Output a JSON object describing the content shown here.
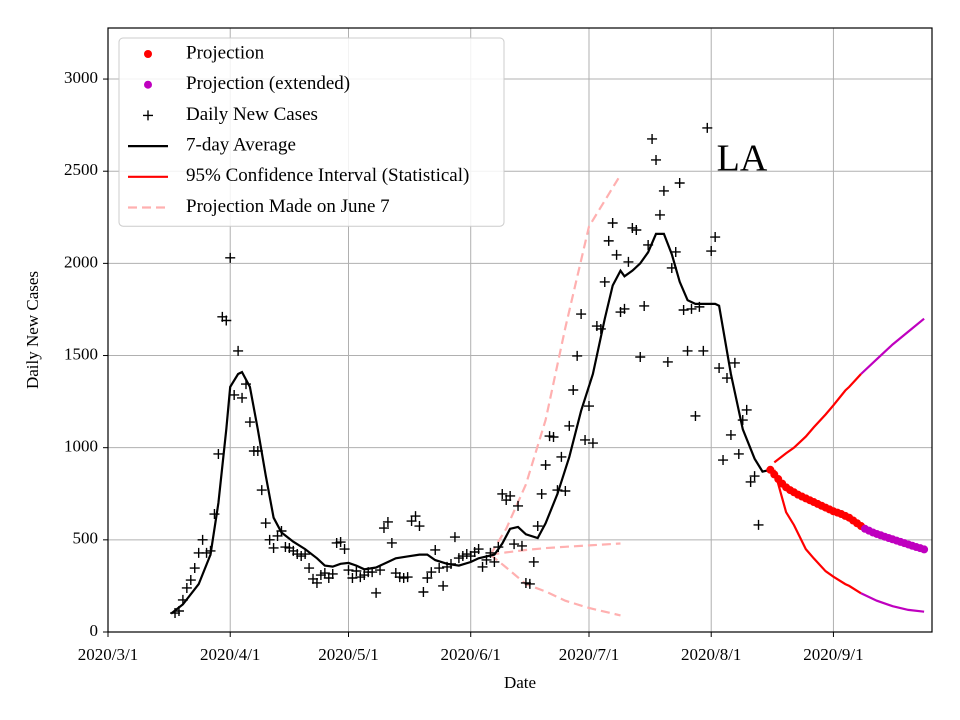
{
  "chart_data": {
    "type": "line",
    "annotation": "LA",
    "xlabel": "Date",
    "ylabel": "Daily New Cases",
    "xlim": [
      "2020/3/1",
      "2020/9/26"
    ],
    "ylim": [
      0,
      3277
    ],
    "xticks": [
      "2020/3/1",
      "2020/4/1",
      "2020/5/1",
      "2020/6/1",
      "2020/7/1",
      "2020/8/1",
      "2020/9/1"
    ],
    "yticks": [
      0,
      500,
      1000,
      1500,
      2000,
      2500,
      3000
    ],
    "grid": true,
    "legend": "upper left",
    "series": [
      {
        "name": "Projection",
        "color": "#ff0000",
        "style": "dot",
        "x": [
          "2020/8/16",
          "2020/8/17",
          "2020/8/18",
          "2020/8/19",
          "2020/8/20",
          "2020/8/21",
          "2020/8/22",
          "2020/8/23",
          "2020/8/24",
          "2020/8/25",
          "2020/8/26",
          "2020/8/27",
          "2020/8/28",
          "2020/8/29",
          "2020/8/30",
          "2020/8/31",
          "2020/9/1",
          "2020/9/2",
          "2020/9/3",
          "2020/9/4",
          "2020/9/5",
          "2020/9/6",
          "2020/9/7",
          "2020/9/8"
        ],
        "values": [
          880,
          855,
          830,
          805,
          785,
          770,
          758,
          745,
          735,
          725,
          715,
          705,
          695,
          685,
          675,
          665,
          655,
          648,
          640,
          630,
          620,
          605,
          590,
          575
        ]
      },
      {
        "name": "Projection (extended)",
        "color": "#bf00bf",
        "style": "dot",
        "x": [
          "2020/9/9",
          "2020/9/10",
          "2020/9/11",
          "2020/9/12",
          "2020/9/13",
          "2020/9/14",
          "2020/9/15",
          "2020/9/16",
          "2020/9/17",
          "2020/9/18",
          "2020/9/19",
          "2020/9/20",
          "2020/9/21",
          "2020/9/22",
          "2020/9/23",
          "2020/9/24"
        ],
        "values": [
          560,
          550,
          540,
          532,
          525,
          517,
          510,
          503,
          496,
          489,
          482,
          475,
          468,
          461,
          455,
          448
        ]
      },
      {
        "name": "Daily New Cases",
        "color": "#000000",
        "style": "plus",
        "x": [
          "2020/3/18",
          "2020/3/19",
          "2020/3/20",
          "2020/3/21",
          "2020/3/22",
          "2020/3/23",
          "2020/3/24",
          "2020/3/25",
          "2020/3/26",
          "2020/3/27",
          "2020/3/28",
          "2020/3/29",
          "2020/3/30",
          "2020/3/31",
          "2020/4/1",
          "2020/4/2",
          "2020/4/3",
          "2020/4/4",
          "2020/4/5",
          "2020/4/6",
          "2020/4/7",
          "2020/4/8",
          "2020/4/9",
          "2020/4/10",
          "2020/4/11",
          "2020/4/12",
          "2020/4/13",
          "2020/4/14",
          "2020/4/15",
          "2020/4/16",
          "2020/4/17",
          "2020/4/18",
          "2020/4/19",
          "2020/4/20",
          "2020/4/21",
          "2020/4/22",
          "2020/4/23",
          "2020/4/24",
          "2020/4/25",
          "2020/4/26",
          "2020/4/27",
          "2020/4/28",
          "2020/4/29",
          "2020/4/30",
          "2020/5/1",
          "2020/5/2",
          "2020/5/3",
          "2020/5/4",
          "2020/5/5",
          "2020/5/6",
          "2020/5/7",
          "2020/5/8",
          "2020/5/9",
          "2020/5/10",
          "2020/5/11",
          "2020/5/12",
          "2020/5/13",
          "2020/5/14",
          "2020/5/15",
          "2020/5/16",
          "2020/5/17",
          "2020/5/18",
          "2020/5/19",
          "2020/5/20",
          "2020/5/21",
          "2020/5/22",
          "2020/5/23",
          "2020/5/24",
          "2020/5/25",
          "2020/5/26",
          "2020/5/27",
          "2020/5/28",
          "2020/5/29",
          "2020/5/30",
          "2020/5/31",
          "2020/6/1",
          "2020/6/2",
          "2020/6/3",
          "2020/6/4",
          "2020/6/5",
          "2020/6/6",
          "2020/6/7",
          "2020/6/8",
          "2020/6/9",
          "2020/6/10",
          "2020/6/11",
          "2020/6/12",
          "2020/6/13",
          "2020/6/14",
          "2020/6/15",
          "2020/6/16",
          "2020/6/17",
          "2020/6/18",
          "2020/6/19",
          "2020/6/20",
          "2020/6/21",
          "2020/6/22",
          "2020/6/23",
          "2020/6/24",
          "2020/6/25",
          "2020/6/26",
          "2020/6/27",
          "2020/6/28",
          "2020/6/29",
          "2020/6/30",
          "2020/7/1",
          "2020/7/2",
          "2020/7/3",
          "2020/7/4",
          "2020/7/5",
          "2020/7/6",
          "2020/7/7",
          "2020/7/8",
          "2020/7/9",
          "2020/7/10",
          "2020/7/11",
          "2020/7/12",
          "2020/7/13",
          "2020/7/14",
          "2020/7/15",
          "2020/7/16",
          "2020/7/17",
          "2020/7/18",
          "2020/7/19",
          "2020/7/20",
          "2020/7/21",
          "2020/7/22",
          "2020/7/23",
          "2020/7/24",
          "2020/7/25",
          "2020/7/26",
          "2020/7/27",
          "2020/7/28",
          "2020/7/29",
          "2020/7/30",
          "2020/7/31",
          "2020/8/1",
          "2020/8/2",
          "2020/8/3",
          "2020/8/4",
          "2020/8/5",
          "2020/8/6",
          "2020/8/7",
          "2020/8/8",
          "2020/8/9",
          "2020/8/10",
          "2020/8/11",
          "2020/8/12",
          "2020/8/13"
        ],
        "values": [
          103,
          114,
          174,
          239,
          282,
          347,
          429,
          500,
          429,
          440,
          640,
          966,
          1710,
          1690,
          2030,
          1286,
          1525,
          1270,
          1345,
          1139,
          982,
          982,
          770,
          591,
          500,
          456,
          521,
          548,
          461,
          456,
          440,
          423,
          412,
          423,
          347,
          288,
          266,
          309,
          320,
          293,
          315,
          483,
          488,
          450,
          336,
          293,
          331,
          298,
          309,
          325,
          325,
          212,
          336,
          564,
          597,
          483,
          320,
          298,
          293,
          298,
          602,
          629,
          575,
          217,
          293,
          325,
          445,
          347,
          250,
          353,
          369,
          515,
          401,
          412,
          423,
          412,
          434,
          450,
          353,
          391,
          429,
          380,
          461,
          749,
          716,
          738,
          477,
          684,
          467,
          266,
          261,
          380,
          575,
          749,
          906,
          1063,
          1058,
          770,
          950,
          765,
          1118,
          1313,
          1498,
          1725,
          1042,
          1226,
          1025,
          1660,
          1644,
          1899,
          2122,
          2219,
          2046,
          1736,
          1753,
          2008,
          2192,
          2181,
          1492,
          1769,
          2100,
          2675,
          2561,
          2263,
          2393,
          1465,
          1975,
          2062,
          2436,
          1747,
          1525,
          1753,
          1172,
          1764,
          1525,
          2735,
          2067,
          2143,
          1432,
          933,
          1378,
          1069,
          1460,
          966,
          1150,
          1205,
          814,
          846,
          581
        ]
      },
      {
        "name": "7-day Average",
        "color": "#000000",
        "style": "line",
        "x": [
          "2020/3/17",
          "2020/3/20",
          "2020/3/24",
          "2020/3/27",
          "2020/3/29",
          "2020/3/31",
          "2020/4/1",
          "2020/4/3",
          "2020/4/4",
          "2020/4/6",
          "2020/4/8",
          "2020/4/10",
          "2020/4/12",
          "2020/4/14",
          "2020/4/17",
          "2020/4/20",
          "2020/4/23",
          "2020/4/25",
          "2020/4/27",
          "2020/4/29",
          "2020/5/1",
          "2020/5/3",
          "2020/5/5",
          "2020/5/8",
          "2020/5/11",
          "2020/5/13",
          "2020/5/16",
          "2020/5/19",
          "2020/5/21",
          "2020/5/23",
          "2020/5/26",
          "2020/5/29",
          "2020/6/1",
          "2020/6/3",
          "2020/6/5",
          "2020/6/7",
          "2020/6/9",
          "2020/6/11",
          "2020/6/13",
          "2020/6/15",
          "2020/6/18",
          "2020/6/20",
          "2020/6/23",
          "2020/6/26",
          "2020/6/29",
          "2020/7/2",
          "2020/7/5",
          "2020/7/7",
          "2020/7/9",
          "2020/7/10",
          "2020/7/12",
          "2020/7/14",
          "2020/7/16",
          "2020/7/18",
          "2020/7/20",
          "2020/7/22",
          "2020/7/24",
          "2020/7/26",
          "2020/7/28",
          "2020/7/31",
          "2020/8/2",
          "2020/8/3",
          "2020/8/6",
          "2020/8/9",
          "2020/8/12",
          "2020/8/14",
          "2020/8/16"
        ],
        "values": [
          100,
          150,
          260,
          420,
          700,
          1100,
          1330,
          1400,
          1410,
          1330,
          1100,
          850,
          620,
          540,
          490,
          450,
          400,
          360,
          355,
          370,
          375,
          360,
          340,
          350,
          380,
          400,
          410,
          420,
          420,
          390,
          370,
          360,
          380,
          400,
          410,
          420,
          480,
          560,
          570,
          530,
          510,
          590,
          750,
          950,
          1200,
          1400,
          1700,
          1880,
          1960,
          1930,
          1960,
          2000,
          2060,
          2160,
          2160,
          2050,
          1900,
          1800,
          1780,
          1780,
          1780,
          1770,
          1400,
          1100,
          940,
          870,
          880
        ]
      },
      {
        "name": "95% Confidence Interval (Statistical)",
        "color": "#ff0000",
        "style": "band",
        "x": [
          "2020/8/17",
          "2020/8/20",
          "2020/8/22",
          "2020/8/25",
          "2020/8/27",
          "2020/8/30",
          "2020/9/1",
          "2020/9/4",
          "2020/9/5",
          "2020/9/8"
        ],
        "upper": [
          920,
          970,
          1000,
          1060,
          1110,
          1180,
          1230,
          1310,
          1330,
          1400
        ],
        "lower": [
          880,
          650,
          580,
          450,
          400,
          330,
          300,
          260,
          250,
          210
        ]
      },
      {
        "name": "Projection Made on June 7",
        "color": "#ffb0b0",
        "style": "dashed",
        "x": [
          "2020/6/6",
          "2020/6/10",
          "2020/6/15",
          "2020/6/20",
          "2020/6/25",
          "2020/7/1",
          "2020/7/9"
        ],
        "values": [
          420,
          432,
          445,
          455,
          462,
          470,
          480
        ],
        "upper": [
          420,
          560,
          800,
          1150,
          1650,
          2200,
          2480
        ],
        "lower": [
          420,
          350,
          260,
          220,
          170,
          130,
          90
        ]
      },
      {
        "color": "#bf00bf",
        "style": "band",
        "x": [
          "2020/9/8",
          "2020/9/12",
          "2020/9/16",
          "2020/9/20",
          "2020/9/24"
        ],
        "upper": [
          1400,
          1480,
          1560,
          1630,
          1700
        ],
        "lower": [
          210,
          170,
          140,
          120,
          110
        ]
      }
    ]
  }
}
